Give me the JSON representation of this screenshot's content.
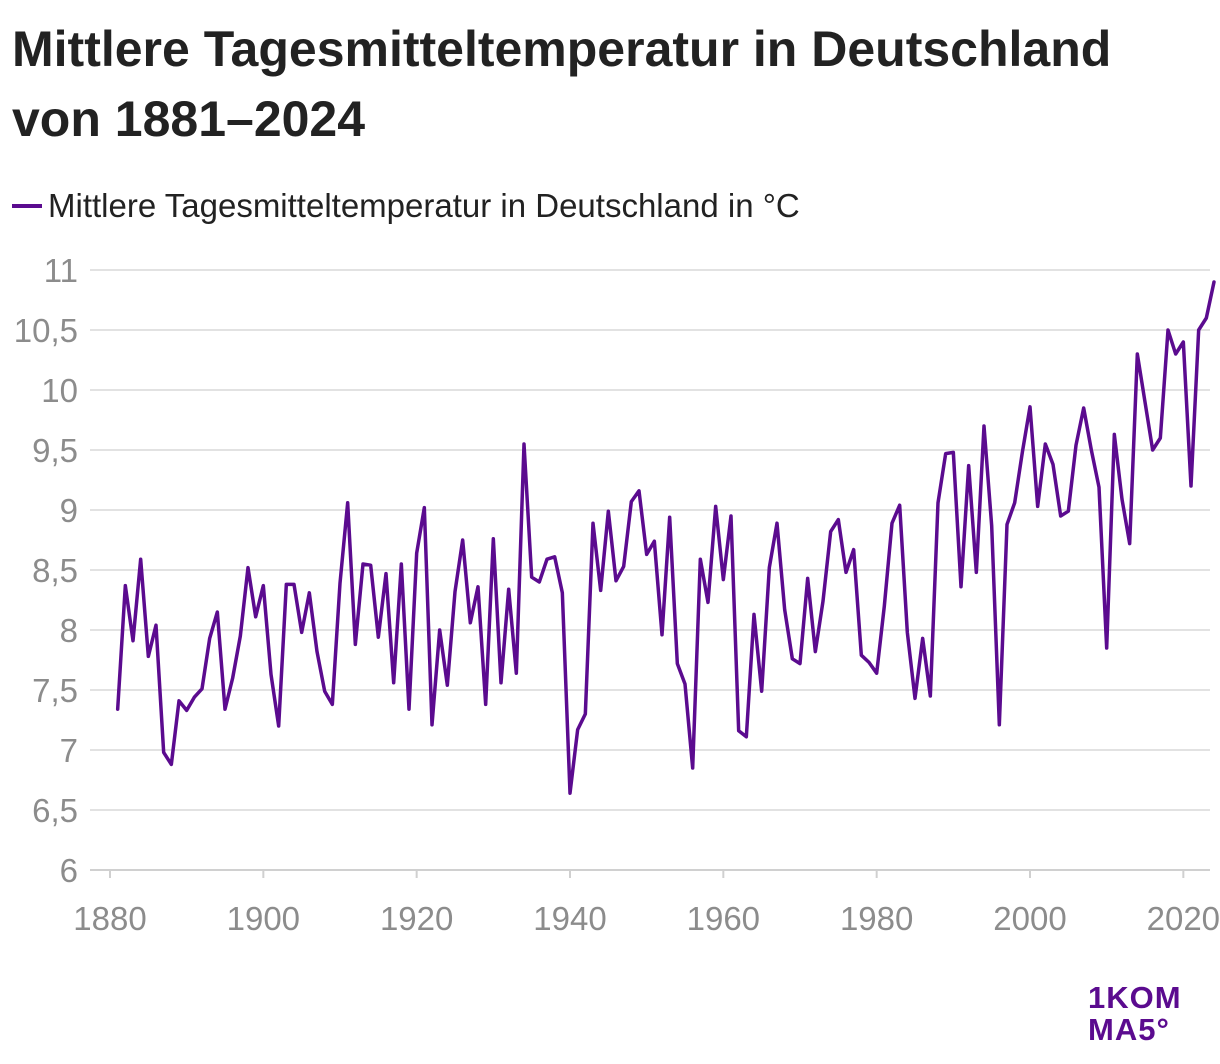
{
  "page": {
    "title": "Mittlere Tagesmitteltemperatur in Deutschland von 1881–2024"
  },
  "legend": {
    "label": "Mittlere Tagesmitteltemperatur in Deutschland in °C"
  },
  "logo": {
    "line1": "1KOM",
    "line2": "MA5°",
    "color": "#5b0b8f"
  },
  "colors": {
    "series": "#5b0b8f",
    "grid": "#e2e2e2",
    "tick_text": "#8c8c8c",
    "axis": "#d0d0d0"
  },
  "chart_data": {
    "type": "line",
    "title": "Mittlere Tagesmitteltemperatur in Deutschland von 1881–2024",
    "xlabel": "",
    "ylabel": "",
    "xlim": [
      1880,
      2024
    ],
    "ylim": [
      6,
      11
    ],
    "x_ticks": [
      1880,
      1900,
      1920,
      1940,
      1960,
      1980,
      2000,
      2020
    ],
    "x_tick_labels": [
      "1880",
      "1900",
      "1920",
      "1940",
      "1960",
      "1980",
      "2000",
      "2020"
    ],
    "y_ticks": [
      6,
      6.5,
      7,
      7.5,
      8,
      8.5,
      9,
      9.5,
      10,
      10.5,
      11
    ],
    "y_tick_labels": [
      "6",
      "6,5",
      "7",
      "7,5",
      "8",
      "8,5",
      "9",
      "9,5",
      "10",
      "10,5",
      "11"
    ],
    "grid": true,
    "legend_position": "top-left",
    "series": [
      {
        "name": "Mittlere Tagesmitteltemperatur in Deutschland in °C",
        "x": [
          1881,
          1882,
          1883,
          1884,
          1885,
          1886,
          1887,
          1888,
          1889,
          1890,
          1891,
          1892,
          1893,
          1894,
          1895,
          1896,
          1897,
          1898,
          1899,
          1900,
          1901,
          1902,
          1903,
          1904,
          1905,
          1906,
          1907,
          1908,
          1909,
          1910,
          1911,
          1912,
          1913,
          1914,
          1915,
          1916,
          1917,
          1918,
          1919,
          1920,
          1921,
          1922,
          1923,
          1924,
          1925,
          1926,
          1927,
          1928,
          1929,
          1930,
          1931,
          1932,
          1933,
          1934,
          1935,
          1936,
          1937,
          1938,
          1939,
          1940,
          1941,
          1942,
          1943,
          1944,
          1945,
          1946,
          1947,
          1948,
          1949,
          1950,
          1951,
          1952,
          1953,
          1954,
          1955,
          1956,
          1957,
          1958,
          1959,
          1960,
          1961,
          1962,
          1963,
          1964,
          1965,
          1966,
          1967,
          1968,
          1969,
          1970,
          1971,
          1972,
          1973,
          1974,
          1975,
          1976,
          1977,
          1978,
          1979,
          1980,
          1981,
          1982,
          1983,
          1984,
          1985,
          1986,
          1987,
          1988,
          1989,
          1990,
          1991,
          1992,
          1993,
          1994,
          1995,
          1996,
          1997,
          1998,
          1999,
          2000,
          2001,
          2002,
          2003,
          2004,
          2005,
          2006,
          2007,
          2008,
          2009,
          2010,
          2011,
          2012,
          2013,
          2014,
          2015,
          2016,
          2017,
          2018,
          2019,
          2020,
          2021,
          2022,
          2023,
          2024
        ],
        "values": [
          7.34,
          8.37,
          7.91,
          8.59,
          7.78,
          8.04,
          6.98,
          6.88,
          7.41,
          7.33,
          7.44,
          7.51,
          7.93,
          8.15,
          7.34,
          7.6,
          7.95,
          8.52,
          8.11,
          8.37,
          7.63,
          7.2,
          8.38,
          8.38,
          7.98,
          8.31,
          7.82,
          7.49,
          7.38,
          8.39,
          9.06,
          7.88,
          8.55,
          8.54,
          7.94,
          8.47,
          7.56,
          8.55,
          7.34,
          8.64,
          9.02,
          7.21,
          8.0,
          7.54,
          8.32,
          8.75,
          8.06,
          8.36,
          7.38,
          8.76,
          7.56,
          8.34,
          7.64,
          9.55,
          8.44,
          8.4,
          8.59,
          8.61,
          8.31,
          6.64,
          7.17,
          7.3,
          8.89,
          8.33,
          8.99,
          8.41,
          8.53,
          9.07,
          9.16,
          8.63,
          8.74,
          7.96,
          8.94,
          7.72,
          7.55,
          6.85,
          8.59,
          8.23,
          9.03,
          8.42,
          8.95,
          7.16,
          7.11,
          8.13,
          7.49,
          8.52,
          8.89,
          8.17,
          7.76,
          7.72,
          8.43,
          7.82,
          8.24,
          8.82,
          8.92,
          8.48,
          8.67,
          7.79,
          7.73,
          7.64,
          8.2,
          8.89,
          9.04,
          7.98,
          7.43,
          7.93,
          7.45,
          9.06,
          9.47,
          9.48,
          8.36,
          9.37,
          8.48,
          9.7,
          8.87,
          7.21,
          8.88,
          9.06,
          9.48,
          9.86,
          9.03,
          9.55,
          9.38,
          8.95,
          8.99,
          9.54,
          9.85,
          9.5,
          9.19,
          7.85,
          9.63,
          9.09,
          8.72,
          10.3,
          9.9,
          9.5,
          9.6,
          10.5,
          10.3,
          10.4,
          9.2,
          10.5,
          10.6,
          10.9
        ]
      }
    ]
  }
}
